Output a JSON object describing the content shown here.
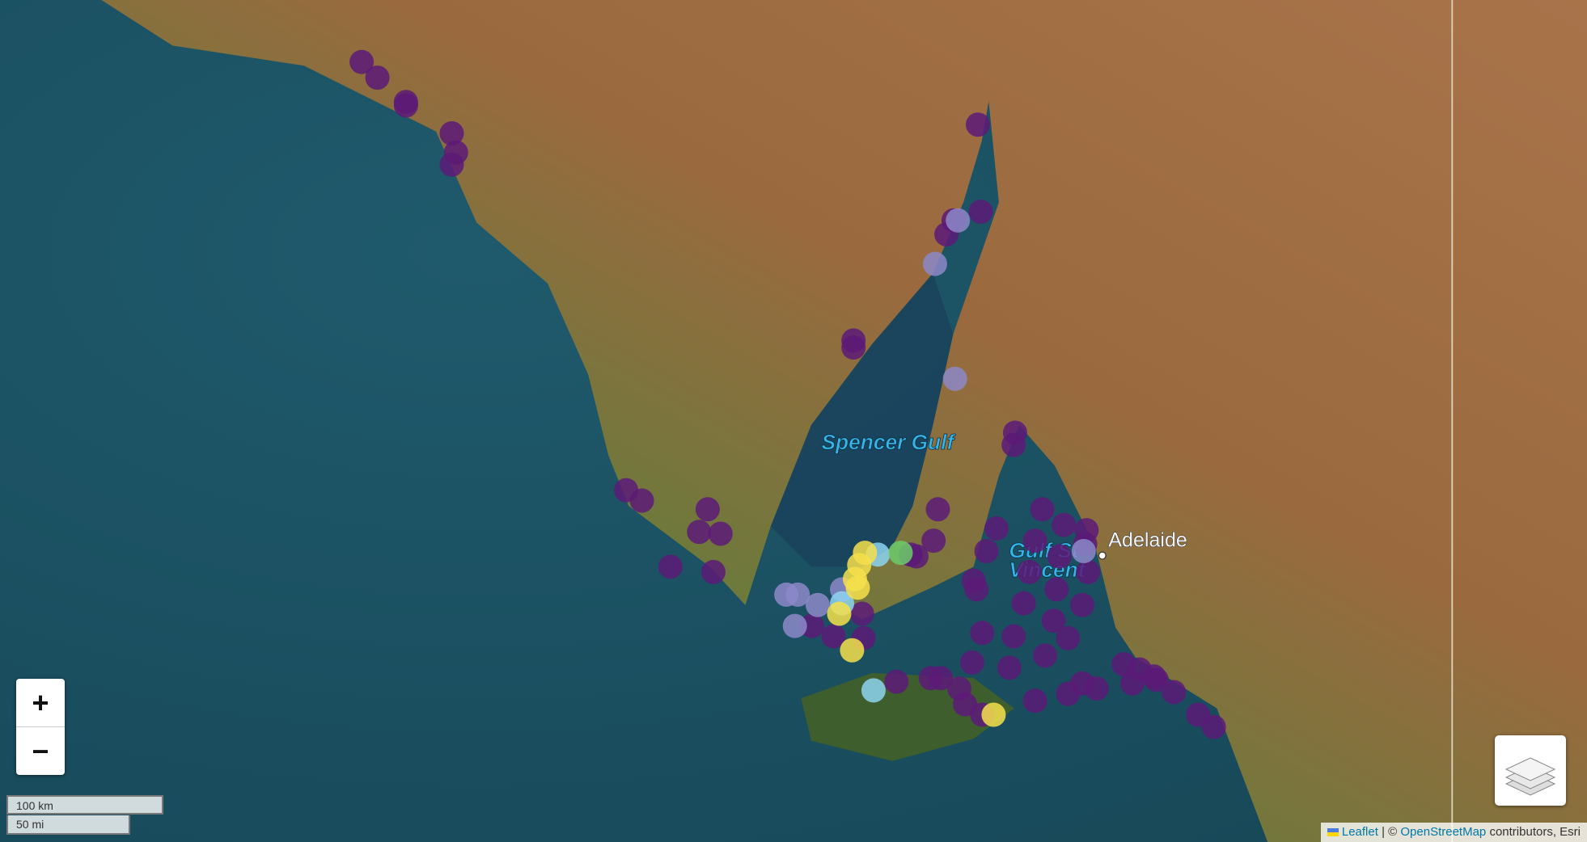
{
  "map": {
    "place_labels": {
      "gulf1": "Spencer Gulf",
      "gulf2_line1": "Gulf St",
      "gulf2_line2": "Vincent",
      "city": "Adelaide"
    },
    "zoom_in": "+",
    "zoom_out": "−",
    "scale": {
      "metric": "100 km",
      "imperial": "50 mi"
    },
    "attribution": {
      "leaflet": "Leaflet",
      "sep": "| ©",
      "osm": "OpenStreetMap",
      "rest": "contributors, Esri"
    },
    "markers": [
      {
        "lon": 133.42,
        "lat": -32.1,
        "color": "#5c1a78"
      },
      {
        "lon": 133.53,
        "lat": -32.19,
        "color": "#5c1a78"
      },
      {
        "lon": 133.73,
        "lat": -32.33,
        "color": "#5c1a78"
      },
      {
        "lon": 133.73,
        "lat": -32.35,
        "color": "#5c1a78"
      },
      {
        "lon": 134.05,
        "lat": -32.51,
        "color": "#5c1a78"
      },
      {
        "lon": 134.08,
        "lat": -32.62,
        "color": "#5c1a78"
      },
      {
        "lon": 134.05,
        "lat": -32.69,
        "color": "#5c1a78"
      },
      {
        "lon": 137.73,
        "lat": -32.46,
        "color": "#5c1a78"
      },
      {
        "lon": 137.56,
        "lat": -33.01,
        "color": "#5c1a78"
      },
      {
        "lon": 137.51,
        "lat": -33.09,
        "color": "#5c1a78"
      },
      {
        "lon": 137.75,
        "lat": -32.96,
        "color": "#5c1a78"
      },
      {
        "lon": 136.86,
        "lat": -33.7,
        "color": "#5c1a78"
      },
      {
        "lon": 136.86,
        "lat": -33.74,
        "color": "#5c1a78"
      },
      {
        "lon": 137.99,
        "lat": -34.23,
        "color": "#5c1a78"
      },
      {
        "lon": 137.98,
        "lat": -34.3,
        "color": "#5c1a78"
      },
      {
        "lon": 135.27,
        "lat": -34.56,
        "color": "#5c1a78"
      },
      {
        "lon": 135.38,
        "lat": -34.62,
        "color": "#5c1a78"
      },
      {
        "lon": 135.84,
        "lat": -34.67,
        "color": "#5c1a78"
      },
      {
        "lon": 135.78,
        "lat": -34.8,
        "color": "#5c1a78"
      },
      {
        "lon": 135.93,
        "lat": -34.81,
        "color": "#5c1a78"
      },
      {
        "lon": 135.58,
        "lat": -35.0,
        "color": "#5c1a78"
      },
      {
        "lon": 135.88,
        "lat": -35.03,
        "color": "#5c1a78"
      },
      {
        "lon": 137.45,
        "lat": -34.67,
        "color": "#5c1a78"
      },
      {
        "lon": 137.42,
        "lat": -34.85,
        "color": "#5c1a78"
      },
      {
        "lon": 137.26,
        "lat": -34.93,
        "color": "#5c1a78"
      },
      {
        "lon": 137.3,
        "lat": -34.94,
        "color": "#5c1a78"
      },
      {
        "lon": 137.86,
        "lat": -34.78,
        "color": "#5c1a78"
      },
      {
        "lon": 137.79,
        "lat": -34.91,
        "color": "#5c1a78"
      },
      {
        "lon": 138.18,
        "lat": -34.67,
        "color": "#5c1a78"
      },
      {
        "lon": 138.13,
        "lat": -34.85,
        "color": "#5c1a78"
      },
      {
        "lon": 138.33,
        "lat": -34.76,
        "color": "#5c1a78"
      },
      {
        "lon": 138.49,
        "lat": -34.79,
        "color": "#5c1a78"
      },
      {
        "lon": 138.48,
        "lat": -34.87,
        "color": "#5c1a78"
      },
      {
        "lon": 138.3,
        "lat": -34.94,
        "color": "#5c1a78"
      },
      {
        "lon": 138.09,
        "lat": -35.03,
        "color": "#5c1a78"
      },
      {
        "lon": 137.7,
        "lat": -35.08,
        "color": "#5c1a78"
      },
      {
        "lon": 137.72,
        "lat": -35.13,
        "color": "#5c1a78"
      },
      {
        "lon": 138.28,
        "lat": -35.13,
        "color": "#5c1a78"
      },
      {
        "lon": 138.5,
        "lat": -35.03,
        "color": "#5c1a78"
      },
      {
        "lon": 138.05,
        "lat": -35.21,
        "color": "#5c1a78"
      },
      {
        "lon": 138.46,
        "lat": -35.22,
        "color": "#5c1a78"
      },
      {
        "lon": 138.26,
        "lat": -35.31,
        "color": "#5c1a78"
      },
      {
        "lon": 138.36,
        "lat": -35.41,
        "color": "#5c1a78"
      },
      {
        "lon": 137.76,
        "lat": -35.38,
        "color": "#5c1a78"
      },
      {
        "lon": 137.98,
        "lat": -35.4,
        "color": "#5c1a78"
      },
      {
        "lon": 138.2,
        "lat": -35.51,
        "color": "#5c1a78"
      },
      {
        "lon": 137.69,
        "lat": -35.55,
        "color": "#5c1a78"
      },
      {
        "lon": 137.95,
        "lat": -35.58,
        "color": "#5c1a78"
      },
      {
        "lon": 138.13,
        "lat": -35.77,
        "color": "#5c1a78"
      },
      {
        "lon": 138.36,
        "lat": -35.73,
        "color": "#5c1a78"
      },
      {
        "lon": 138.56,
        "lat": -35.7,
        "color": "#5c1a78"
      },
      {
        "lon": 138.46,
        "lat": -35.67,
        "color": "#5c1a78"
      },
      {
        "lon": 138.75,
        "lat": -35.56,
        "color": "#5c1a78"
      },
      {
        "lon": 138.86,
        "lat": -35.59,
        "color": "#5c1a78"
      },
      {
        "lon": 138.98,
        "lat": -35.65,
        "color": "#5c1a78"
      },
      {
        "lon": 139.1,
        "lat": -35.72,
        "color": "#5c1a78"
      },
      {
        "lon": 139.27,
        "lat": -35.85,
        "color": "#5c1a78"
      },
      {
        "lon": 139.38,
        "lat": -35.92,
        "color": "#5c1a78"
      },
      {
        "lon": 138.81,
        "lat": -35.67,
        "color": "#5c1a78"
      },
      {
        "lon": 138.96,
        "lat": -35.63,
        "color": "#5c1a78"
      },
      {
        "lon": 137.16,
        "lat": -35.66,
        "color": "#5c1a78"
      },
      {
        "lon": 137.4,
        "lat": -35.64,
        "color": "#5c1a78"
      },
      {
        "lon": 137.47,
        "lat": -35.64,
        "color": "#5c1a78"
      },
      {
        "lon": 137.6,
        "lat": -35.7,
        "color": "#5c1a78"
      },
      {
        "lon": 137.64,
        "lat": -35.79,
        "color": "#5c1a78"
      },
      {
        "lon": 137.76,
        "lat": -35.85,
        "color": "#5c1a78"
      },
      {
        "lon": 136.57,
        "lat": -35.34,
        "color": "#5c1a78"
      },
      {
        "lon": 136.93,
        "lat": -35.41,
        "color": "#5c1a78"
      },
      {
        "lon": 136.92,
        "lat": -35.27,
        "color": "#5c1a78"
      },
      {
        "lon": 136.72,
        "lat": -35.4,
        "color": "#5c1a78"
      },
      {
        "lon": 137.43,
        "lat": -33.26,
        "color": "#8c88c9"
      },
      {
        "lon": 137.57,
        "lat": -33.92,
        "color": "#8c88c9"
      },
      {
        "lon": 136.39,
        "lat": -35.16,
        "color": "#8c88c9"
      },
      {
        "lon": 136.47,
        "lat": -35.16,
        "color": "#8c88c9"
      },
      {
        "lon": 136.45,
        "lat": -35.34,
        "color": "#8c88c9"
      },
      {
        "lon": 136.61,
        "lat": -35.22,
        "color": "#8c88c9"
      },
      {
        "lon": 136.78,
        "lat": -35.13,
        "color": "#8c88c9"
      },
      {
        "lon": 137.59,
        "lat": -33.01,
        "color": "#8c88c9"
      },
      {
        "lon": 138.47,
        "lat": -34.91,
        "color": "#8c88c9"
      },
      {
        "lon": 137.03,
        "lat": -34.93,
        "color": "#8dd3f0"
      },
      {
        "lon": 136.78,
        "lat": -35.21,
        "color": "#8dd3f0"
      },
      {
        "lon": 137.0,
        "lat": -35.71,
        "color": "#8dd3f0"
      },
      {
        "lon": 137.19,
        "lat": -34.92,
        "color": "#6ccc6a"
      },
      {
        "lon": 136.94,
        "lat": -34.92,
        "color": "#f6e04b"
      },
      {
        "lon": 136.9,
        "lat": -34.99,
        "color": "#f6e04b"
      },
      {
        "lon": 136.87,
        "lat": -35.07,
        "color": "#f6e04b"
      },
      {
        "lon": 136.89,
        "lat": -35.12,
        "color": "#f6e04b"
      },
      {
        "lon": 136.76,
        "lat": -35.27,
        "color": "#f6e04b"
      },
      {
        "lon": 136.85,
        "lat": -35.48,
        "color": "#f6e04b"
      },
      {
        "lon": 137.84,
        "lat": -35.85,
        "color": "#f6e04b"
      }
    ]
  }
}
